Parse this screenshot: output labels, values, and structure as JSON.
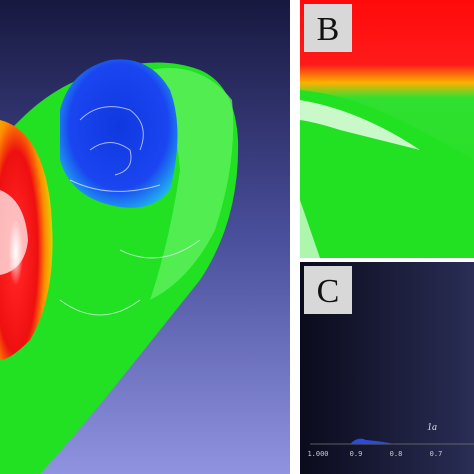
{
  "panels": [
    {
      "label": "B"
    },
    {
      "label": "C",
      "scale_ticks": [
        "1.000",
        "0.9",
        "0.8",
        "0.7"
      ],
      "annotation": "1a"
    }
  ]
}
